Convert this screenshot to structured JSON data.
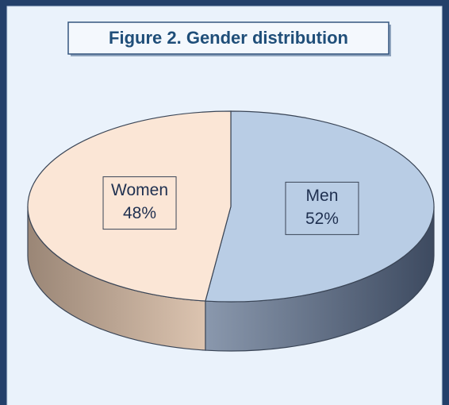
{
  "chart_data": {
    "type": "pie",
    "title": "Figure 2. Gender distribution",
    "categories": [
      "Men",
      "Women"
    ],
    "values": [
      52,
      48
    ],
    "value_labels": [
      "52%",
      "48%"
    ],
    "colors": [
      "#b9cde5",
      "#fbe6d6"
    ],
    "side_colors": [
      "#4e5e77",
      "#b49a82"
    ]
  }
}
